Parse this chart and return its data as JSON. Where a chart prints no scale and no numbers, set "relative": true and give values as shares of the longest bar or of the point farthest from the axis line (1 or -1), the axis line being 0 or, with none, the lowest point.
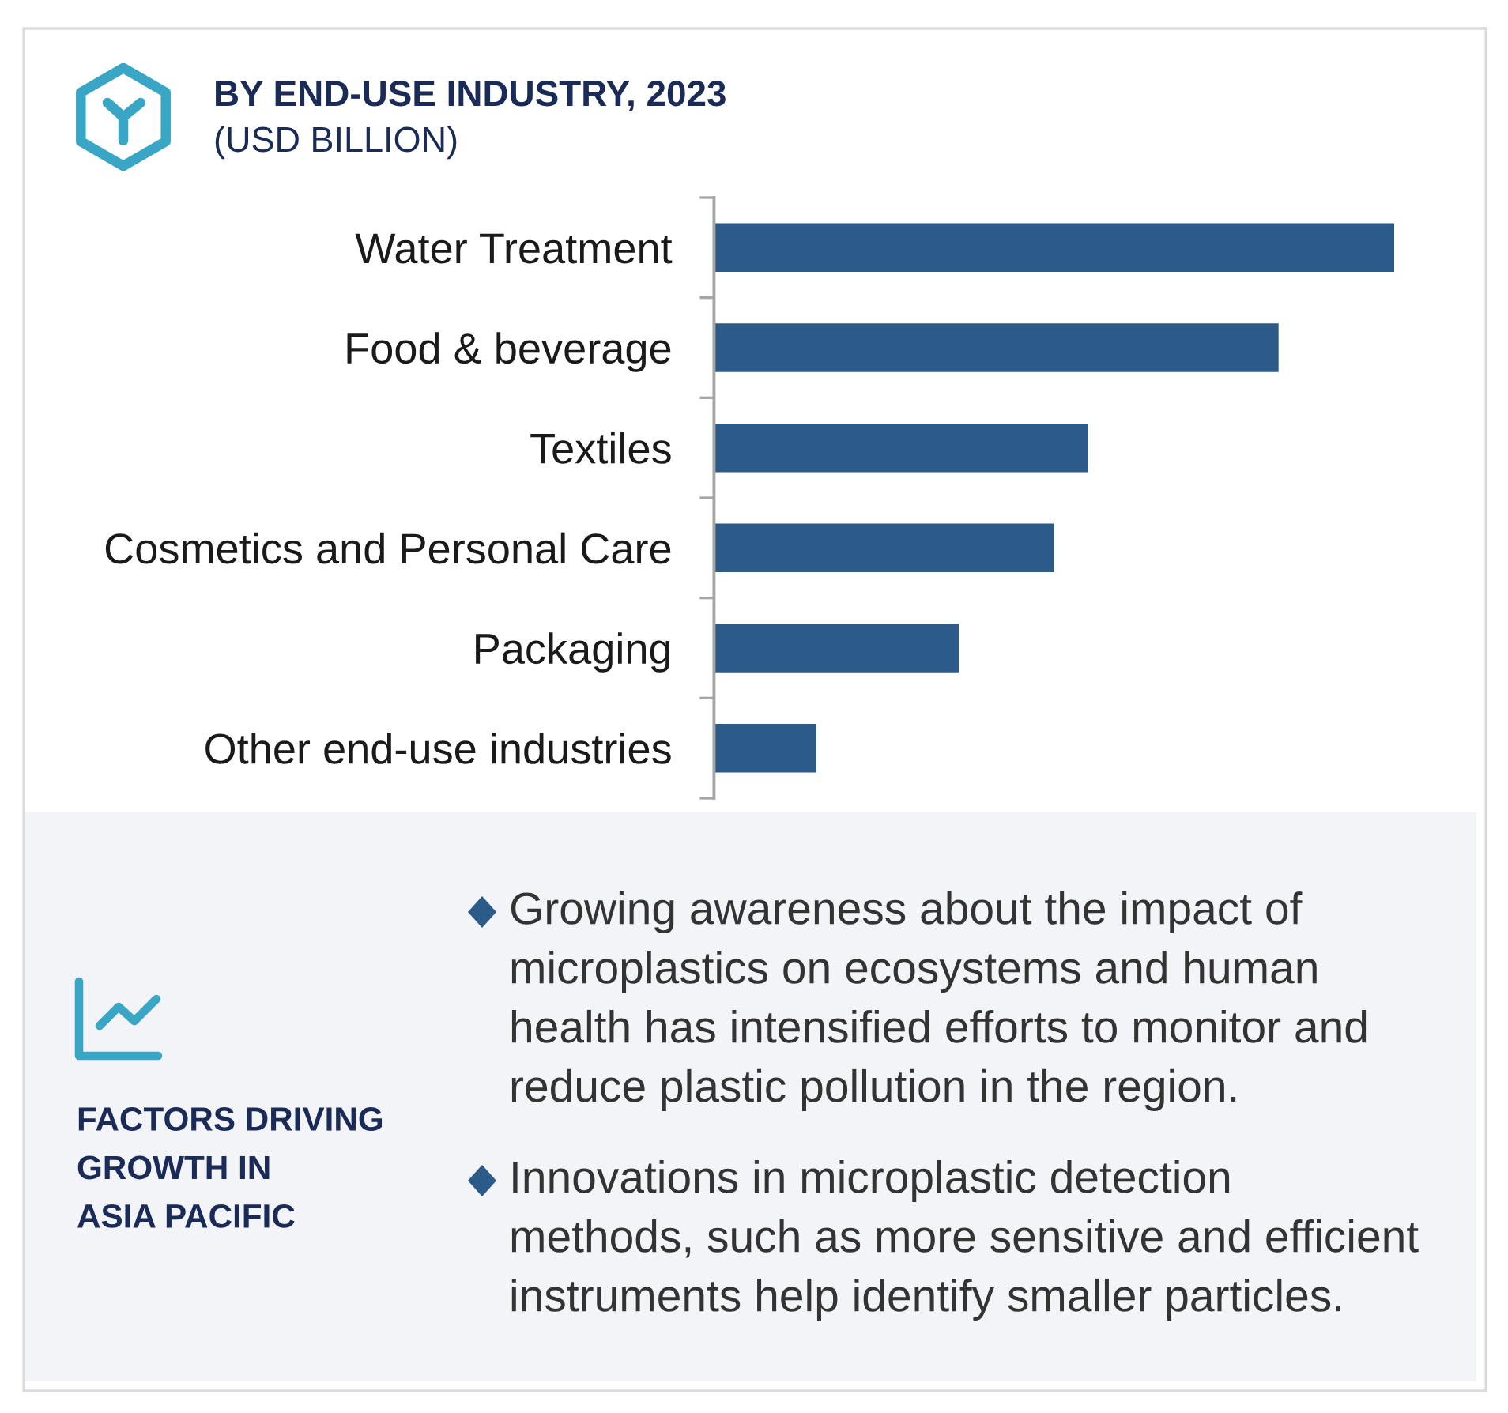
{
  "chart_data": {
    "type": "bar",
    "orientation": "horizontal",
    "relative": true,
    "title": "BY END-USE INDUSTRY, 2023",
    "subtitle": "(USD BILLION)",
    "categories": [
      "Water Treatment",
      "Food & beverage",
      "Textiles",
      "Cosmetics and Personal Care",
      "Packaging",
      "Other end-use industries"
    ],
    "values": [
      1,
      0.83,
      0.55,
      0.5,
      0.36,
      0.15
    ],
    "color": "#2c5b8a",
    "annotations": [
      "FACTORS DRIVING\nGROWTH IN\nASIA PACIFIC",
      "Growing awareness about the impact of\nmicroplastics on ecosystems and human\nhealth has intensified efforts to monitor and\nreduce plastic pollution in the region.",
      "Innovations in microplastic detection\nmethods, such as more sensitive and efficient\ninstruments help identify smaller particles."
    ]
  }
}
